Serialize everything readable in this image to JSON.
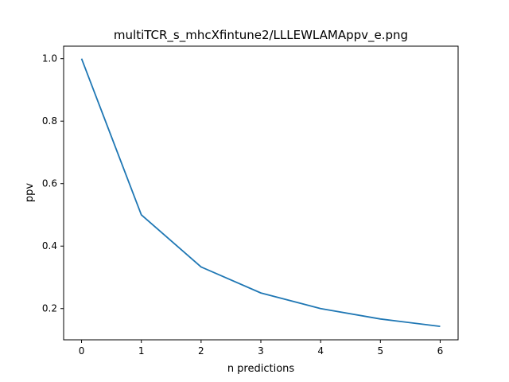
{
  "chart_data": {
    "type": "line",
    "title": "multiTCR_s_mhcXfintune2/LLLEWLAMAppv_e.png",
    "xlabel": "n predictions",
    "ylabel": "ppv",
    "x": [
      0,
      1,
      2,
      3,
      4,
      5,
      6
    ],
    "series": [
      {
        "values": [
          1.0,
          0.5,
          0.3333,
          0.25,
          0.2,
          0.1667,
          0.1429
        ],
        "color": "#1f77b4"
      }
    ],
    "xlim": [
      -0.3,
      6.3
    ],
    "ylim": [
      0.1,
      1.04
    ],
    "xticks": [
      "0",
      "1",
      "2",
      "3",
      "4",
      "5",
      "6"
    ],
    "yticks": [
      "0.2",
      "0.4",
      "0.6",
      "0.8",
      "1.0"
    ],
    "grid": false,
    "legend": false
  }
}
